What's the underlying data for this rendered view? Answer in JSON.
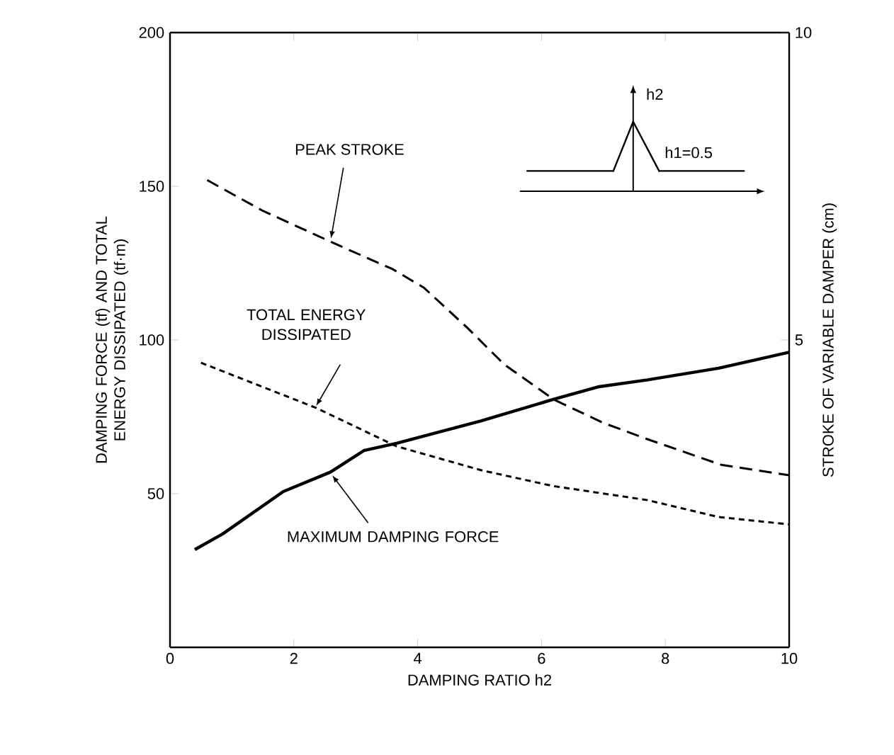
{
  "chart_data": {
    "type": "line",
    "xlabel": "DAMPING RATIO h2",
    "ylabel": "DAMPING FORCE (tf) AND TOTAL ENERGY DISSIPATED (tf·m)",
    "y2label": "STROKE OF VARIABLE DAMPER (cm)",
    "xlim": [
      0,
      10
    ],
    "xticks": [
      0,
      2,
      4,
      6,
      8,
      10
    ],
    "ylim": [
      0,
      200
    ],
    "yticks": [
      50,
      100,
      150,
      200
    ],
    "y2lim": [
      0,
      10
    ],
    "y2ticks": [
      5,
      10
    ],
    "annotations": [
      "h2",
      "h1=0.5"
    ],
    "series": [
      {
        "name": "PEAK STROKE",
        "color": "#000000",
        "line_style": "dashed",
        "axis": "y2",
        "x": [
          0.6,
          1.5,
          2.7,
          3.6,
          4.1,
          4.8,
          5.4,
          6.2,
          7.0,
          7.7,
          8.9,
          10
        ],
        "values": [
          7.6,
          7.1,
          6.55,
          6.15,
          5.85,
          5.2,
          4.6,
          4.03,
          3.65,
          3.39,
          2.97,
          2.8
        ]
      },
      {
        "name": "TOTAL ENERGY DISSIPATED",
        "color": "#000000",
        "line_style": "dotted",
        "x": [
          0.5,
          2.36,
          3.66,
          5.03,
          6.18,
          7.71,
          8.86,
          10
        ],
        "values": [
          92.6,
          77.9,
          65.4,
          57.6,
          52.5,
          47.9,
          42.4,
          40
        ]
      },
      {
        "name": "MAXIMUM DAMPING FORCE",
        "color": "#000000",
        "line_style": "solid",
        "x": [
          0.4,
          0.85,
          1.83,
          2.59,
          3.13,
          3.66,
          5.03,
          6.18,
          6.93,
          7.71,
          8.86,
          10
        ],
        "values": [
          31.8,
          36.9,
          50.7,
          57,
          64,
          66.4,
          73.7,
          80.6,
          84.8,
          87,
          90.8,
          96
        ]
      }
    ]
  }
}
